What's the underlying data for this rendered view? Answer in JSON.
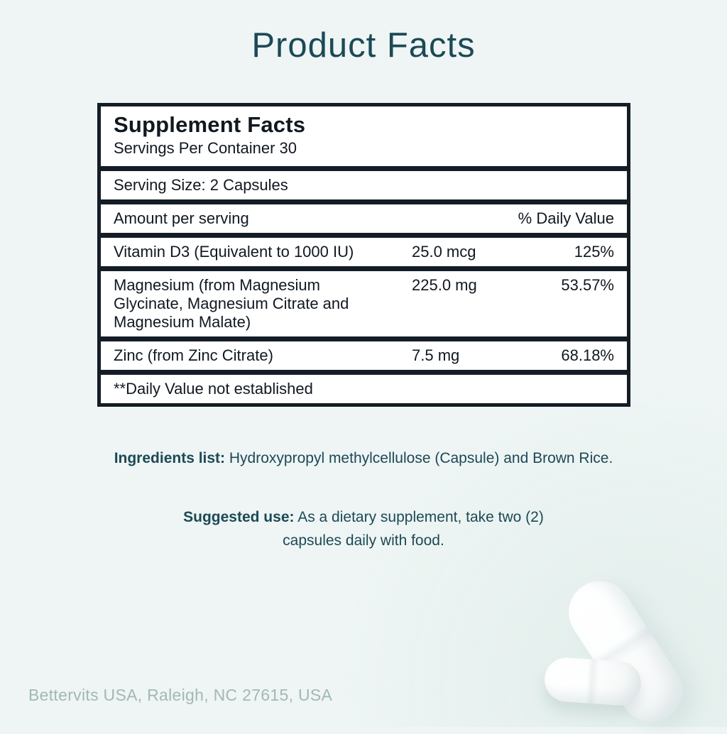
{
  "page": {
    "title": "Product Facts",
    "footer": "Bettervits USA, Raleigh, NC 27615, USA"
  },
  "supplement_facts": {
    "title": "Supplement Facts",
    "servings_per_container": "Servings Per Container 30",
    "serving_size": "Serving Size: 2 Capsules",
    "columns": {
      "amount": "Amount per serving",
      "daily_value": "% Daily Value"
    },
    "rows": [
      {
        "name": "Vitamin D3 (Equivalent to 1000 IU)",
        "amount": "25.0 mcg",
        "daily_value": "125%"
      },
      {
        "name": "Magnesium (from Magnesium Glycinate, Magnesium Citrate and Magnesium Malate)",
        "amount": "225.0 mg",
        "daily_value": "53.57%"
      },
      {
        "name": "Zinc (from Zinc Citrate)",
        "amount": "7.5 mg",
        "daily_value": "68.18%"
      }
    ],
    "footnote": "**Daily Value not established"
  },
  "ingredients": {
    "label": "Ingredients list:",
    "text": "Hydroxypropyl methylcellulose (Capsule) and Brown Rice."
  },
  "suggested_use": {
    "label": "Suggested use:",
    "text": "As a dietary supplement, take two (2) capsules daily with food."
  },
  "colors": {
    "background": "#eef5f4",
    "heading_teal": "#1c4956",
    "table_border": "#141c26",
    "table_row_bg": "#ffffff",
    "footer_gray": "#a3b8b4"
  }
}
